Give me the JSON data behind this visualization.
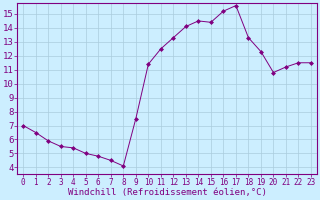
{
  "x": [
    0,
    1,
    2,
    3,
    4,
    5,
    6,
    7,
    8,
    9,
    10,
    11,
    12,
    13,
    14,
    15,
    16,
    17,
    18,
    19,
    20,
    21,
    22,
    23
  ],
  "y": [
    7.0,
    6.5,
    5.9,
    5.5,
    5.4,
    5.0,
    4.8,
    4.5,
    4.1,
    7.5,
    11.4,
    12.5,
    13.3,
    14.1,
    14.5,
    14.4,
    15.2,
    15.6,
    13.3,
    12.3,
    10.8,
    11.2,
    11.5,
    11.5
  ],
  "line_color": "#800080",
  "marker": "D",
  "marker_size": 2,
  "bg_color": "#cceeff",
  "grid_color": "#aaccdd",
  "xlabel": "Windchill (Refroidissement éolien,°C)",
  "xlim": [
    -0.5,
    23.5
  ],
  "ylim": [
    3.5,
    15.8
  ],
  "yticks": [
    4,
    5,
    6,
    7,
    8,
    9,
    10,
    11,
    12,
    13,
    14,
    15
  ],
  "xticks": [
    0,
    1,
    2,
    3,
    4,
    5,
    6,
    7,
    8,
    9,
    10,
    11,
    12,
    13,
    14,
    15,
    16,
    17,
    18,
    19,
    20,
    21,
    22,
    23
  ],
  "tick_color": "#800080",
  "label_color": "#800080",
  "spine_color": "#800080",
  "xlabel_fontsize": 6.5,
  "tick_fontsize_x": 5.5,
  "tick_fontsize_y": 6.5
}
